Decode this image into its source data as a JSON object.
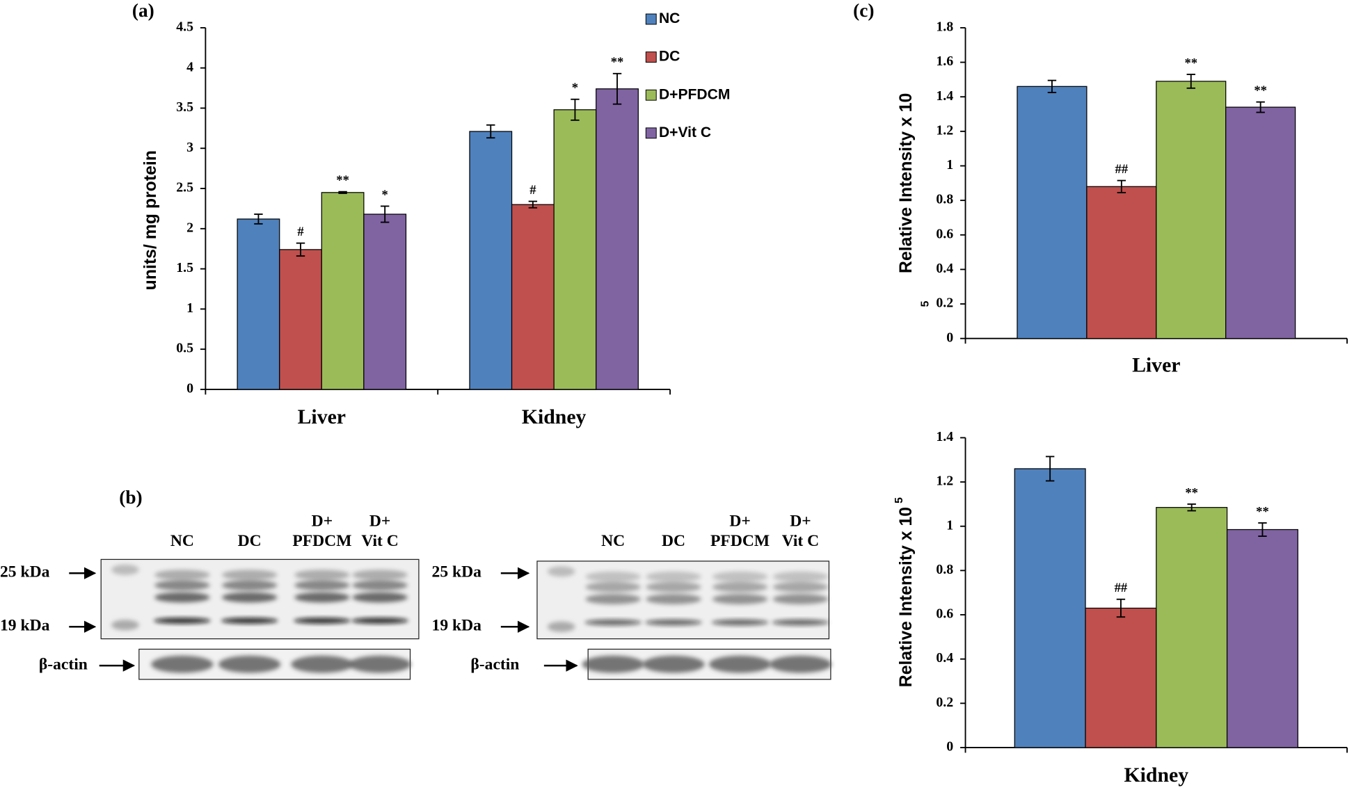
{
  "panel_labels": [
    "(a)",
    "(b)",
    "(c)"
  ],
  "chart_data": [
    {
      "type": "bar",
      "y_label": "units/ mg protein",
      "categories": [
        "Liver",
        "Kidney"
      ],
      "ylim": [
        0,
        4.5
      ],
      "yticks": [
        0,
        0.5,
        1,
        1.5,
        2,
        2.5,
        3,
        3.5,
        4,
        4.5
      ],
      "legend": "upper right",
      "series": [
        {
          "name": "NC",
          "color": "#4f81bd",
          "values": [
            2.12,
            3.21
          ],
          "errors": [
            0.06,
            0.08
          ],
          "annotations": [
            null,
            null
          ]
        },
        {
          "name": "DC",
          "color": "#c0504d",
          "values": [
            1.74,
            2.3
          ],
          "errors": [
            0.08,
            0.04
          ],
          "annotations": [
            "#",
            "#"
          ]
        },
        {
          "name": "D+PFDCM",
          "color": "#9bbb59",
          "values": [
            2.45,
            3.48
          ],
          "errors": [
            0.01,
            0.13
          ],
          "annotations": [
            "**",
            "*"
          ]
        },
        {
          "name": "D+Vit C",
          "color": "#8064a2",
          "values": [
            2.18,
            3.74
          ],
          "errors": [
            0.1,
            0.19
          ],
          "annotations": [
            "*",
            "**"
          ]
        }
      ]
    },
    {
      "type": "bar",
      "y_label": "Relative Intensity x 10",
      "y_label_exponent": "5",
      "categories": [
        "Liver"
      ],
      "ylim": [
        0,
        1.8
      ],
      "yticks": [
        0,
        0.2,
        0.4,
        0.6,
        0.8,
        1,
        1.2,
        1.4,
        1.6,
        1.8
      ],
      "series": [
        {
          "color": "#4f81bd",
          "values": [
            1.46
          ],
          "errors": [
            0.035
          ],
          "annotations": [
            null
          ]
        },
        {
          "color": "#c0504d",
          "values": [
            0.88
          ],
          "errors": [
            0.035
          ],
          "annotations": [
            "##"
          ]
        },
        {
          "color": "#9bbb59",
          "values": [
            1.49
          ],
          "errors": [
            0.04
          ],
          "annotations": [
            "**"
          ]
        },
        {
          "color": "#8064a2",
          "values": [
            1.34
          ],
          "errors": [
            0.03
          ],
          "annotations": [
            "**"
          ]
        }
      ]
    },
    {
      "type": "bar",
      "y_label": "Relative Intensity x 10",
      "y_label_exponent": "5",
      "categories": [
        "Kidney"
      ],
      "ylim": [
        0,
        1.4
      ],
      "yticks": [
        0,
        0.2,
        0.4,
        0.6,
        0.8,
        1,
        1.2,
        1.4
      ],
      "series": [
        {
          "color": "#4f81bd",
          "values": [
            1.26
          ],
          "errors": [
            0.055
          ],
          "annotations": [
            null
          ]
        },
        {
          "color": "#c0504d",
          "values": [
            0.63
          ],
          "errors": [
            0.04
          ],
          "annotations": [
            "##"
          ]
        },
        {
          "color": "#9bbb59",
          "values": [
            1.085
          ],
          "errors": [
            0.015
          ],
          "annotations": [
            "**"
          ]
        },
        {
          "color": "#8064a2",
          "values": [
            0.985
          ],
          "errors": [
            0.03
          ],
          "annotations": [
            "**"
          ]
        }
      ]
    }
  ],
  "blots": [
    {
      "lanes": [
        [
          "NC"
        ],
        [
          "DC"
        ],
        [
          "D+",
          "PFDCM"
        ],
        [
          "D+",
          "Vit C"
        ]
      ],
      "markers": [
        "25 kDa",
        "19 kDa"
      ],
      "loading_control": "β-actin"
    },
    {
      "lanes": [
        [
          "NC"
        ],
        [
          "DC"
        ],
        [
          "D+",
          "PFDCM"
        ],
        [
          "D+",
          "Vit C"
        ]
      ],
      "markers": [
        "25 kDa",
        "19 kDa"
      ],
      "loading_control": "β-actin"
    }
  ]
}
